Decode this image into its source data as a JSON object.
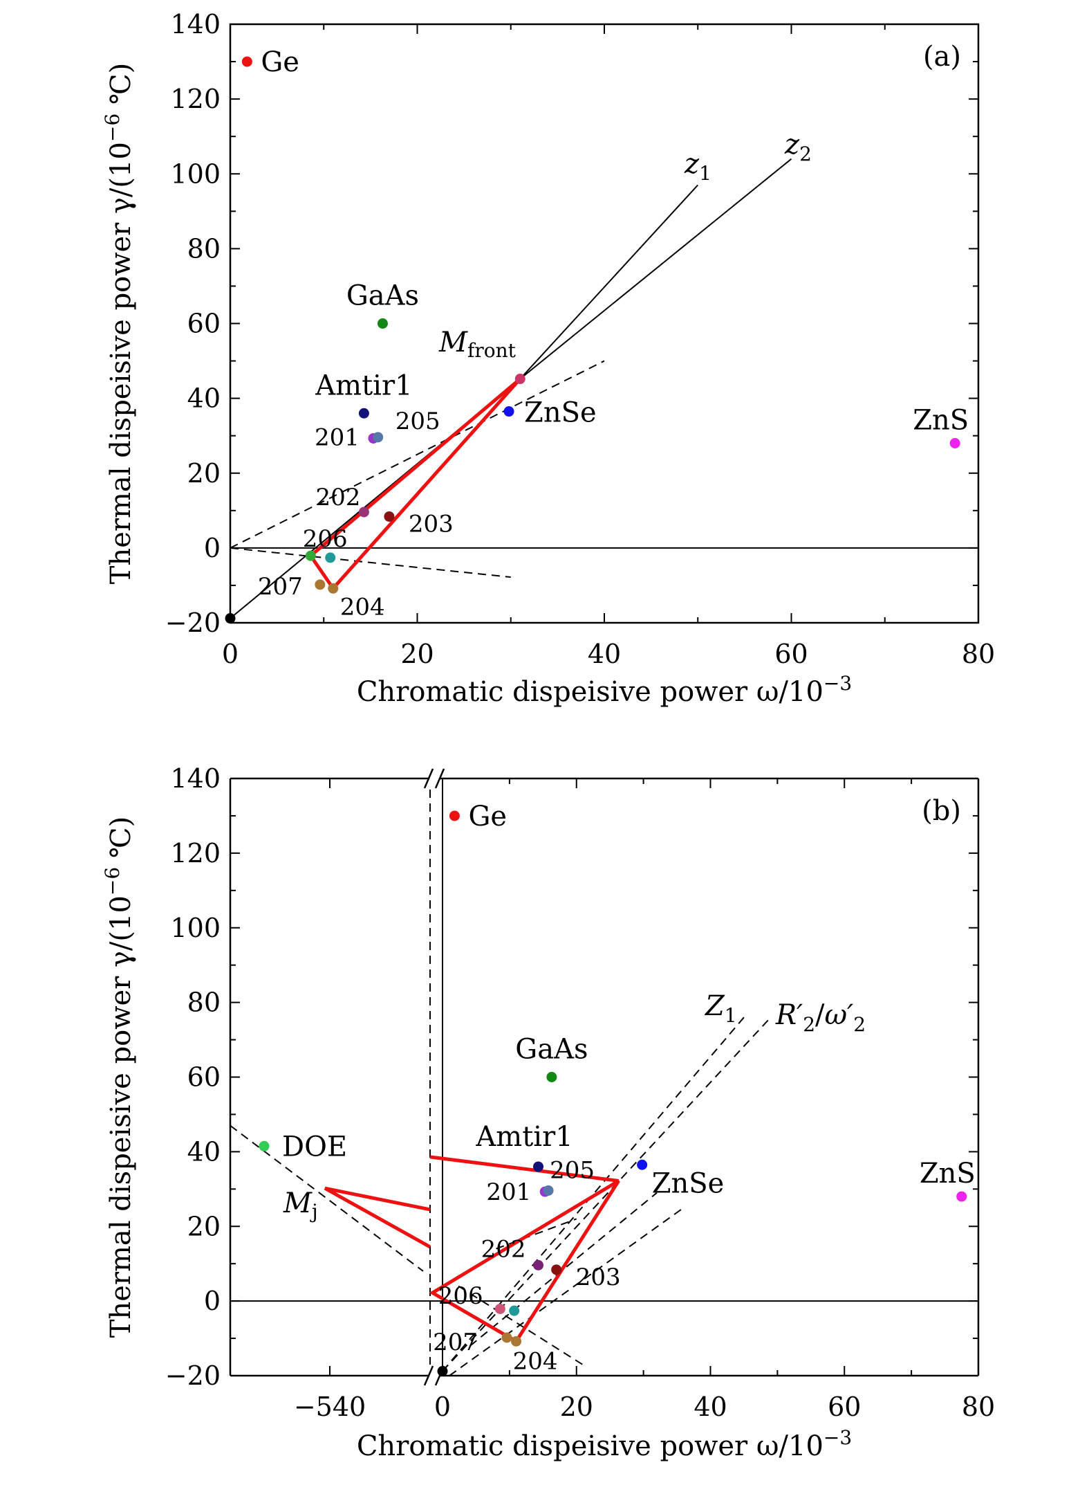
{
  "chart_data": [
    {
      "type": "scatter",
      "panel_label": "(a)",
      "xlabel": "Chromatic dispeisive power ω/10",
      "xlabel_exp": "−3",
      "ylabel": "Thermal dispeisive power γ/(10",
      "ylabel_exp": "−6",
      "ylabel_unit": " ℃)",
      "xlim": [
        0,
        80
      ],
      "ylim": [
        -20,
        140
      ],
      "xticks": [
        "0",
        "20",
        "40",
        "60",
        "80"
      ],
      "yticks": [
        "−20",
        "0",
        "20",
        "40",
        "60",
        "80",
        "100",
        "120",
        "140"
      ],
      "points": [
        {
          "label": "Ge",
          "x": 1.8,
          "y": 130,
          "color": "#ee1111"
        },
        {
          "label": "GaAs",
          "x": 16.3,
          "y": 60,
          "color": "#118811"
        },
        {
          "label": "Amtir1",
          "x": 14.3,
          "y": 36,
          "color": "#111177"
        },
        {
          "label": "ZnSe",
          "x": 29.8,
          "y": 36.5,
          "color": "#1111ee"
        },
        {
          "label": "ZnS",
          "x": 77.5,
          "y": 28,
          "color": "#ee22ee"
        },
        {
          "label": "201",
          "x": 15.3,
          "y": 29.3,
          "color": "#9933cc"
        },
        {
          "label": "205",
          "x": 15.8,
          "y": 29.6,
          "color": "#5577aa"
        },
        {
          "label": "202",
          "x": 14.3,
          "y": 9.6,
          "color": "#993377"
        },
        {
          "label": "203",
          "x": 17.0,
          "y": 8.4,
          "color": "#881111"
        },
        {
          "label": "206",
          "x": 10.7,
          "y": -2.6,
          "color": "#229999"
        },
        {
          "label": "207",
          "x": 9.6,
          "y": -9.8,
          "color": "#aa7733"
        },
        {
          "label": "204",
          "x": 11.0,
          "y": -10.8,
          "color": "#aa7733"
        },
        {
          "label": "",
          "x": 8.6,
          "y": -2.1,
          "color": "#33aa33"
        },
        {
          "label": "",
          "x": 31.0,
          "y": 45.2,
          "color": "#cc3366"
        },
        {
          "label": "",
          "x": 0,
          "y": -18.8,
          "color": "#000000"
        }
      ],
      "lines": [
        {
          "label": "z₁",
          "style": "solid",
          "from": [
            31.0,
            45.2
          ],
          "to": [
            50.0,
            97.0
          ]
        },
        {
          "label": "z₂",
          "style": "solid",
          "from": [
            31.0,
            45.2
          ],
          "to": [
            60.0,
            104.0
          ]
        },
        {
          "label": "",
          "style": "solid",
          "from": [
            0,
            -18.8
          ],
          "to": [
            31.0,
            45.2
          ]
        },
        {
          "label": "",
          "style": "dashed",
          "from": [
            0,
            0
          ],
          "to": [
            40.0,
            50.0
          ]
        },
        {
          "label": "",
          "style": "dashed",
          "from": [
            0,
            0
          ],
          "to": [
            30.0,
            -7.8
          ]
        }
      ],
      "polygon": [
        [
          31.0,
          45.2
        ],
        [
          8.6,
          -2.1
        ],
        [
          11.0,
          -10.8
        ]
      ],
      "annotations": [
        {
          "text": "M",
          "sub": "front"
        }
      ]
    },
    {
      "type": "scatter",
      "panel_label": "(b)",
      "xlabel": "Chromatic dispeisive power ω/10",
      "xlabel_exp": "−3",
      "ylabel": "Thermal dispeisive power γ/(10",
      "ylabel_exp": "−6",
      "ylabel_unit": " ℃)",
      "xlim": [
        -570,
        80
      ],
      "axis_break": true,
      "ylim": [
        -20,
        140
      ],
      "xticks": [
        "−540",
        "0",
        "20",
        "40",
        "60",
        "80"
      ],
      "yticks": [
        "−20",
        "0",
        "20",
        "40",
        "60",
        "80",
        "100",
        "120",
        "140"
      ],
      "points": [
        {
          "label": "Ge",
          "x": 1.8,
          "y": 130,
          "color": "#ee1111"
        },
        {
          "label": "GaAs",
          "x": 16.3,
          "y": 60,
          "color": "#118811"
        },
        {
          "label": "Amtir1",
          "x": 14.3,
          "y": 36,
          "color": "#111177"
        },
        {
          "label": "ZnSe",
          "x": 29.8,
          "y": 36.5,
          "color": "#1111ee"
        },
        {
          "label": "ZnS",
          "x": 77.5,
          "y": 28,
          "color": "#ee22ee"
        },
        {
          "label": "DOE",
          "x": -555,
          "y": 41.5,
          "color": "#33cc55"
        },
        {
          "label": "201",
          "x": 15.3,
          "y": 29.3,
          "color": "#9933cc"
        },
        {
          "label": "205",
          "x": 15.8,
          "y": 29.6,
          "color": "#5577aa"
        },
        {
          "label": "202",
          "x": 14.3,
          "y": 9.6,
          "color": "#772277"
        },
        {
          "label": "203",
          "x": 17.0,
          "y": 8.4,
          "color": "#881111"
        },
        {
          "label": "206",
          "x": 10.7,
          "y": -2.6,
          "color": "#229999"
        },
        {
          "label": "207",
          "x": 9.6,
          "y": -9.8,
          "color": "#aa7733"
        },
        {
          "label": "204",
          "x": 11.0,
          "y": -10.8,
          "color": "#aa7733"
        },
        {
          "label": "",
          "x": 8.6,
          "y": -2.1,
          "color": "#cc5577"
        },
        {
          "label": "",
          "x": 0,
          "y": -18.8,
          "color": "#000000"
        }
      ],
      "lines": [
        {
          "label": "Z₁",
          "style": "dashed",
          "from": [
            0,
            -18.8
          ],
          "to": [
            45.0,
            76.0
          ]
        },
        {
          "label": "R′₂/ω′₂",
          "style": "dashed",
          "from": [
            0,
            -18.8
          ],
          "to": [
            49.0,
            76.0
          ]
        }
      ],
      "polygon": [
        [
          26.3,
          32.2
        ],
        [
          -1.5,
          2.2
        ],
        [
          11.0,
          -10.8
        ]
      ],
      "annotations": [
        {
          "text": "M",
          "sub": "j"
        }
      ]
    }
  ]
}
